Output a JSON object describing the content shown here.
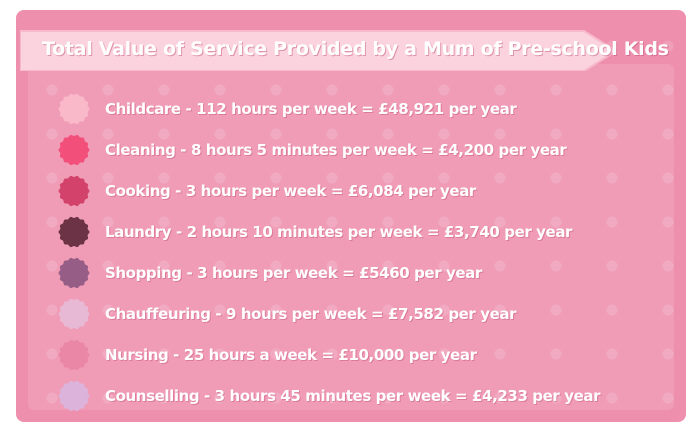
{
  "title": "Total Value of Service Provided by a Mum of Pre-school Kids",
  "colors": {
    "background": "#ee8fae",
    "banner": "#fbd3df",
    "text": "#ffffff"
  },
  "items": [
    {
      "label": "Childcare - 112 hours per week = £48,921 per year",
      "color": "#f9b9c9",
      "icon": "scalloped-circle-icon"
    },
    {
      "label": "Cleaning - 8 hours 5 minutes per week = £4,200 per year",
      "color": "#f2507a",
      "icon": "scalloped-circle-icon"
    },
    {
      "label": "Cooking - 3 hours per week = £6,084 per year",
      "color": "#d2426a",
      "icon": "scalloped-circle-icon"
    },
    {
      "label": "Laundry - 2 hours 10 minutes per week = £3,740 per year",
      "color": "#6b3345",
      "icon": "scalloped-circle-icon"
    },
    {
      "label": "Shopping - 3 hours per week = £5460 per year",
      "color": "#965d86",
      "icon": "scalloped-circle-icon"
    },
    {
      "label": "Chauffeuring - 9 hours per week = £7,582 per year",
      "color": "#e8b9d5",
      "icon": "scalloped-circle-icon"
    },
    {
      "label": "Nursing - 25 hours a week = £10,000 per year",
      "color": "#ea87a7",
      "icon": "scalloped-circle-icon"
    },
    {
      "label": "Counselling - 3 hours 45 minutes per week = £4,233 per year",
      "color": "#dcb3da",
      "icon": "scalloped-circle-icon"
    }
  ]
}
